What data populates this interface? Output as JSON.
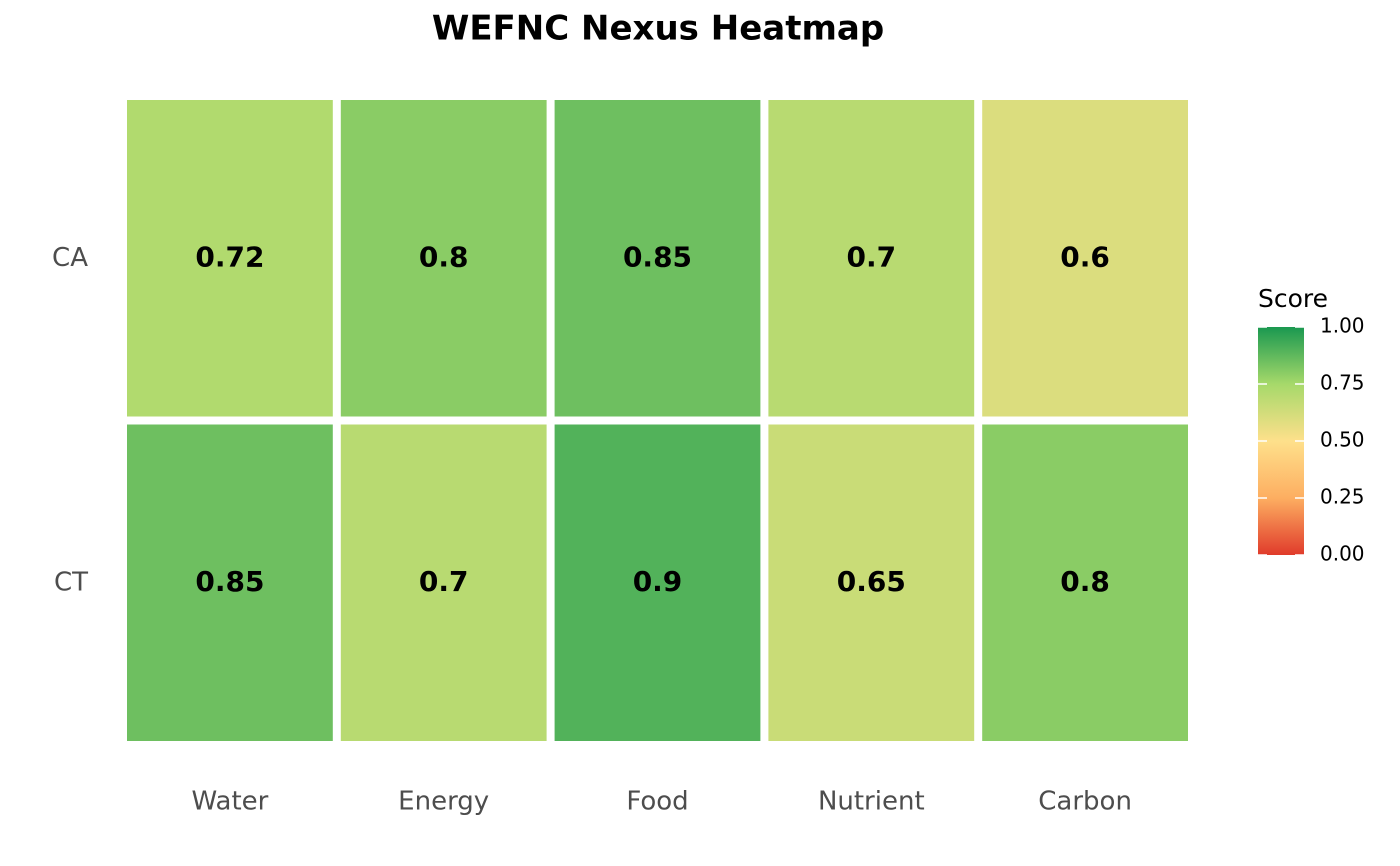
{
  "chart_data": {
    "type": "heatmap",
    "title": "WEFNC Nexus Heatmap",
    "x": [
      "Water",
      "Energy",
      "Food",
      "Nutrient",
      "Carbon"
    ],
    "y": [
      "CA",
      "CT"
    ],
    "values": [
      [
        0.72,
        0.8,
        0.85,
        0.7,
        0.6
      ],
      [
        0.85,
        0.7,
        0.9,
        0.65,
        0.8
      ]
    ],
    "legend_title": "Score",
    "clim": [
      0,
      1
    ],
    "cticks": [
      {
        "value": 0,
        "label": "0.00"
      },
      {
        "value": 0.25,
        "label": "0.25"
      },
      {
        "value": 0.5,
        "label": "0.50"
      },
      {
        "value": 0.75,
        "label": "0.75"
      },
      {
        "value": 1,
        "label": "1.00"
      }
    ],
    "colorscale": [
      "#e03b2b",
      "#fdae61",
      "#fee08b",
      "#a6d96a",
      "#1a9850"
    ],
    "legend_position": "right"
  }
}
